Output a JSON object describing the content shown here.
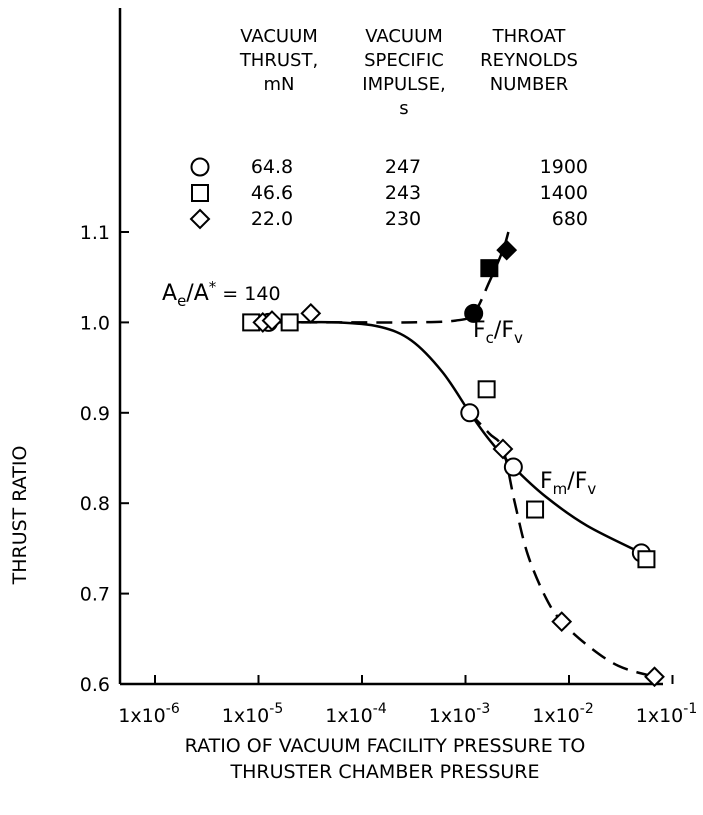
{
  "chart_data": {
    "type": "scatter",
    "x_scale": "log",
    "xlim": [
      1e-06,
      0.1
    ],
    "ylim": [
      0.6,
      1.1
    ],
    "xlabel": [
      "RATIO OF VACUUM FACILITY PRESSURE TO",
      "THRUSTER CHAMBER PRESSURE"
    ],
    "ylabel": "THRUST RATIO",
    "x_ticks": [
      {
        "value": 1e-06,
        "base": "1x10",
        "exp": "-6"
      },
      {
        "value": 1e-05,
        "base": "1x10",
        "exp": "-5"
      },
      {
        "value": 0.0001,
        "base": "1x10",
        "exp": "-4"
      },
      {
        "value": 0.001,
        "base": "1x10",
        "exp": "-3"
      },
      {
        "value": 0.01,
        "base": "1x10",
        "exp": "-2"
      },
      {
        "value": 0.1,
        "base": "1x10",
        "exp": "-1"
      }
    ],
    "y_ticks": [
      {
        "value": 0.6,
        "label": "0.6"
      },
      {
        "value": 0.7,
        "label": "0.7"
      },
      {
        "value": 0.8,
        "label": "0.8"
      },
      {
        "value": 0.9,
        "label": "0.9"
      },
      {
        "value": 1.0,
        "label": "1.0"
      },
      {
        "value": 1.1,
        "label": "1.1"
      }
    ],
    "legend_table": {
      "headers": [
        [
          "VACUUM",
          "THRUST,",
          "mN"
        ],
        [
          "VACUUM",
          "SPECIFIC",
          "IMPULSE,",
          "s"
        ],
        [
          "THROAT",
          "REYNOLDS",
          "NUMBER"
        ]
      ],
      "rows": [
        {
          "marker": "circle",
          "thrust": "64.8",
          "impulse": "247",
          "reynolds": "1900"
        },
        {
          "marker": "square",
          "thrust": "46.6",
          "impulse": "243",
          "reynolds": "1400"
        },
        {
          "marker": "diamond",
          "thrust": "22.0",
          "impulse": "230",
          "reynolds": "680"
        }
      ]
    },
    "area_ratio": {
      "main": "A",
      "sub1": "e",
      "slash": "/A",
      "sup": "*",
      "value": " = 140"
    },
    "series": [
      {
        "marker": "circle",
        "filled": false,
        "points": [
          [
            1.25e-05,
            1.0
          ],
          [
            0.0011,
            0.9
          ],
          [
            0.0029,
            0.84
          ],
          [
            0.05,
            0.745
          ]
        ]
      },
      {
        "marker": "square",
        "filled": false,
        "points": [
          [
            8.5e-06,
            1.0
          ],
          [
            2e-05,
            1.0
          ],
          [
            0.0016,
            0.926
          ],
          [
            0.0047,
            0.793
          ],
          [
            0.056,
            0.738
          ]
        ]
      },
      {
        "marker": "diamond",
        "filled": false,
        "points": [
          [
            1.1e-05,
            1.0
          ],
          [
            1.35e-05,
            1.002
          ],
          [
            3.2e-05,
            1.01
          ],
          [
            0.0023,
            0.86
          ],
          [
            0.0085,
            0.669
          ],
          [
            0.067,
            0.608
          ]
        ]
      },
      {
        "marker": "circle",
        "filled": true,
        "points": [
          [
            0.0012,
            1.01
          ]
        ]
      },
      {
        "marker": "square",
        "filled": true,
        "points": [
          [
            0.0017,
            1.06
          ]
        ]
      },
      {
        "marker": "diamond",
        "filled": true,
        "points": [
          [
            0.0025,
            1.08
          ]
        ]
      }
    ],
    "curves": [
      {
        "name": "Fc/Fv",
        "style": "dashed",
        "points": [
          [
            8.5e-06,
            1.0
          ],
          [
            3e-05,
            1.0
          ],
          [
            0.0001,
            1.0
          ],
          [
            0.0003,
            1.0
          ],
          [
            0.0008,
            1.002
          ],
          [
            0.0012,
            1.01
          ],
          [
            0.0017,
            1.045
          ],
          [
            0.0023,
            1.08
          ],
          [
            0.0026,
            1.1
          ]
        ]
      },
      {
        "name": "Fm/Fv",
        "style": "solid",
        "points": [
          [
            2e-05,
            1.0
          ],
          [
            6e-05,
            1.0
          ],
          [
            0.00015,
            0.995
          ],
          [
            0.0003,
            0.98
          ],
          [
            0.0006,
            0.945
          ],
          [
            0.0011,
            0.9
          ],
          [
            0.0017,
            0.87
          ],
          [
            0.0029,
            0.84
          ],
          [
            0.006,
            0.807
          ],
          [
            0.015,
            0.775
          ],
          [
            0.05,
            0.745
          ]
        ]
      },
      {
        "name": "22.0 mN curve",
        "style": "dashed",
        "points": [
          [
            0.0011,
            0.9
          ],
          [
            0.0017,
            0.877
          ],
          [
            0.0023,
            0.86
          ],
          [
            0.003,
            0.8
          ],
          [
            0.004,
            0.743
          ],
          [
            0.006,
            0.695
          ],
          [
            0.0085,
            0.669
          ],
          [
            0.015,
            0.643
          ],
          [
            0.03,
            0.62
          ],
          [
            0.067,
            0.608
          ]
        ]
      }
    ],
    "curve_labels": [
      {
        "main": "F",
        "sub1": "c",
        "mid": "/F",
        "sub2": "v"
      },
      {
        "main": "F",
        "sub1": "m",
        "mid": "/F",
        "sub2": "v"
      }
    ]
  }
}
